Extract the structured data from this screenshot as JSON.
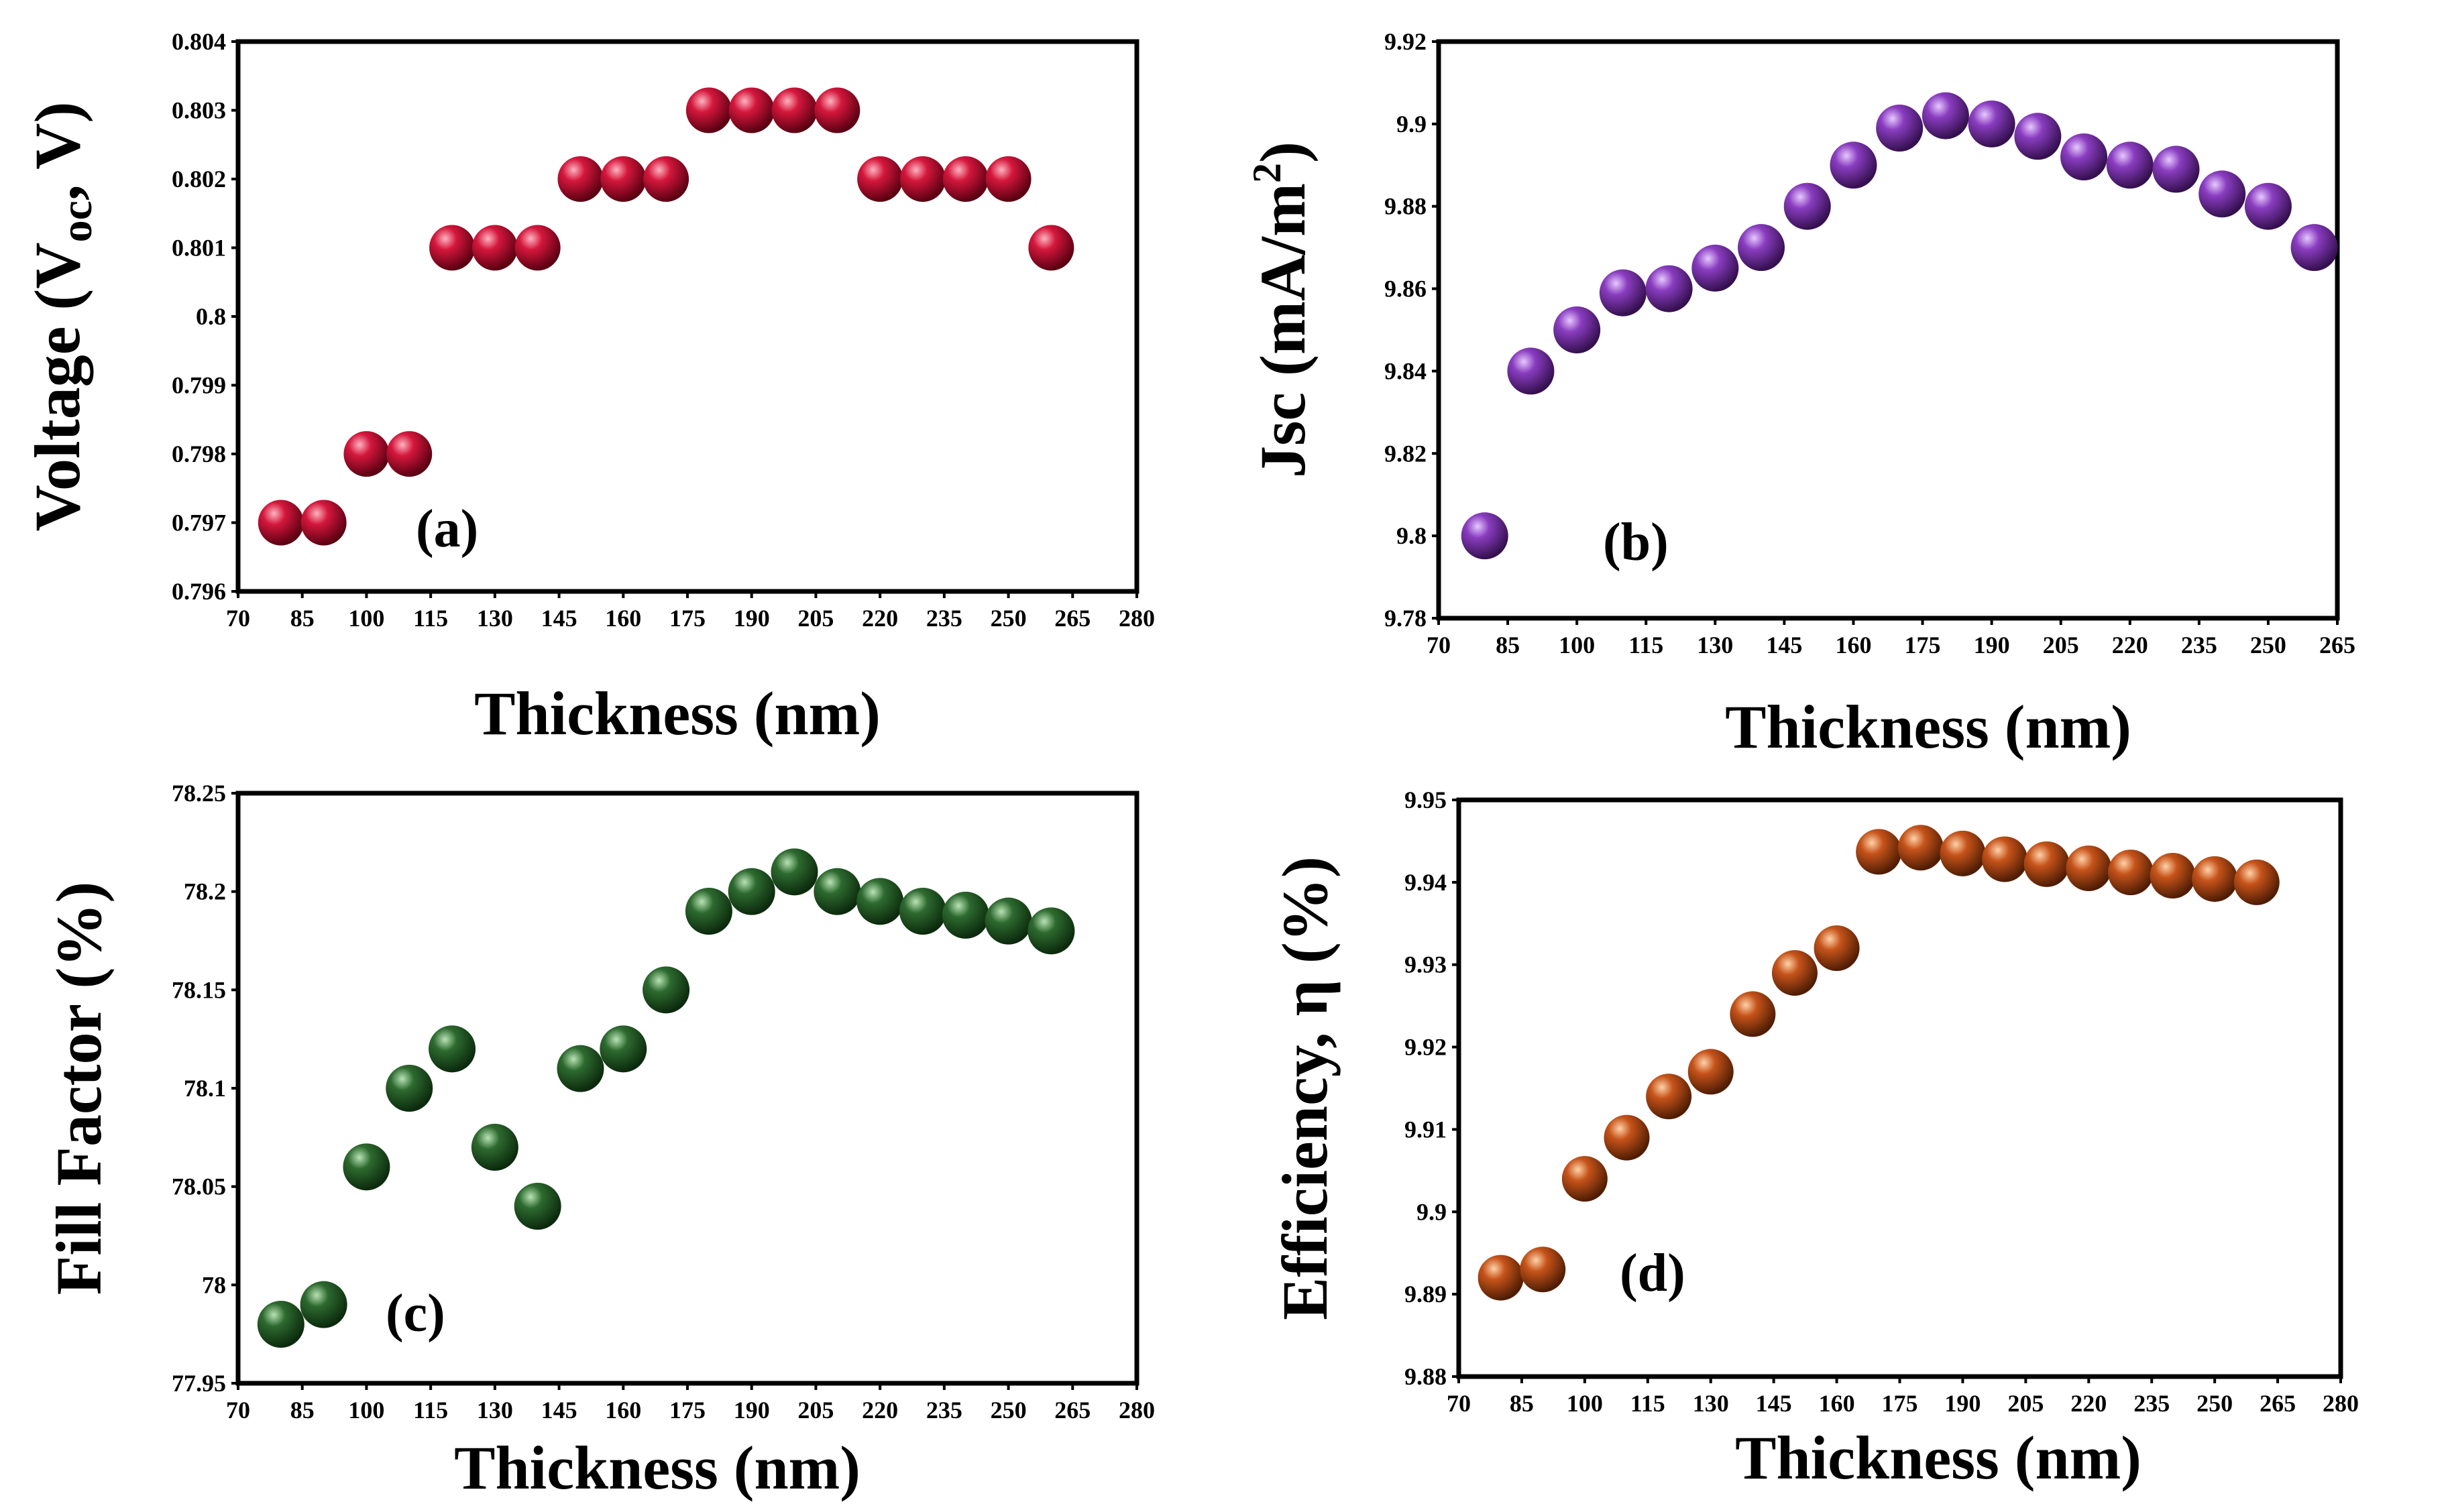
{
  "colors": {
    "a": "#d4173c",
    "b": "#8a3dc0",
    "c": "#2d6a2f",
    "d": "#c6531a"
  },
  "chart_data": [
    {
      "type": "scatter",
      "panel": "(a)",
      "title": "",
      "xlabel": "Thickness (nm)",
      "ylabel_main": "Voltage (V",
      "ylabel_sub": "oc",
      "ylabel_tail": ", V)",
      "xlim": [
        70,
        280
      ],
      "ylim": [
        0.796,
        0.804
      ],
      "xticks": [
        "70",
        "85",
        "100",
        "115",
        "130",
        "145",
        "160",
        "175",
        "190",
        "205",
        "220",
        "235",
        "250",
        "265",
        "280"
      ],
      "xtick_values": [
        70,
        85,
        100,
        115,
        130,
        145,
        160,
        175,
        190,
        205,
        220,
        235,
        250,
        265,
        280
      ],
      "yticks": [
        "0.796",
        "0.797",
        "0.798",
        "0.799",
        "0.8",
        "0.801",
        "0.802",
        "0.803",
        "0.804"
      ],
      "ytick_values": [
        0.796,
        0.797,
        0.798,
        0.799,
        0.8,
        0.801,
        0.802,
        0.803,
        0.804
      ],
      "x": [
        80,
        90,
        100,
        110,
        120,
        130,
        140,
        150,
        160,
        170,
        180,
        190,
        200,
        210,
        220,
        230,
        240,
        250,
        260
      ],
      "y": [
        0.797,
        0.797,
        0.798,
        0.798,
        0.801,
        0.801,
        0.801,
        0.802,
        0.802,
        0.802,
        0.803,
        0.803,
        0.803,
        0.803,
        0.802,
        0.802,
        0.802,
        0.802,
        0.801
      ]
    },
    {
      "type": "scatter",
      "panel": "(b)",
      "title": "",
      "xlabel": "Thickness (nm)",
      "ylabel_main": "Jsc (mA/m",
      "ylabel_sup": "2",
      "ylabel_tail": ")",
      "xlim": [
        70,
        265
      ],
      "ylim": [
        9.78,
        9.92
      ],
      "xticks": [
        "70",
        "85",
        "100",
        "115",
        "130",
        "145",
        "160",
        "175",
        "190",
        "205",
        "220",
        "235",
        "250",
        "265"
      ],
      "xtick_values": [
        70,
        85,
        100,
        115,
        130,
        145,
        160,
        175,
        190,
        205,
        220,
        235,
        250,
        265
      ],
      "yticks": [
        "9.78",
        "9.8",
        "9.82",
        "9.84",
        "9.86",
        "9.88",
        "9.9",
        "9.92"
      ],
      "ytick_values": [
        9.78,
        9.8,
        9.82,
        9.84,
        9.86,
        9.88,
        9.9,
        9.92
      ],
      "x": [
        80,
        90,
        100,
        110,
        120,
        130,
        140,
        150,
        160,
        170,
        180,
        190,
        200,
        210,
        220,
        230,
        240,
        250,
        260
      ],
      "y": [
        9.8,
        9.84,
        9.85,
        9.859,
        9.86,
        9.865,
        9.87,
        9.88,
        9.89,
        9.899,
        9.902,
        9.9,
        9.897,
        9.892,
        9.89,
        9.889,
        9.883,
        9.88,
        9.87
      ]
    },
    {
      "type": "scatter",
      "panel": "(c)",
      "title": "",
      "xlabel": "Thickness (nm)",
      "ylabel_main": "Fill Factor (%)",
      "xlim": [
        70,
        280
      ],
      "ylim": [
        77.95,
        78.25
      ],
      "xticks": [
        "70",
        "85",
        "100",
        "115",
        "130",
        "145",
        "160",
        "175",
        "190",
        "205",
        "220",
        "235",
        "250",
        "265",
        "280"
      ],
      "xtick_values": [
        70,
        85,
        100,
        115,
        130,
        145,
        160,
        175,
        190,
        205,
        220,
        235,
        250,
        265,
        280
      ],
      "yticks": [
        "77.95",
        "78",
        "78.05",
        "78.1",
        "78.15",
        "78.2",
        "78.25"
      ],
      "ytick_values": [
        77.95,
        78.0,
        78.05,
        78.1,
        78.15,
        78.2,
        78.25
      ],
      "x": [
        80,
        90,
        100,
        110,
        120,
        130,
        140,
        150,
        160,
        170,
        180,
        190,
        200,
        210,
        220,
        230,
        240,
        250,
        260
      ],
      "y": [
        77.98,
        77.99,
        78.06,
        78.1,
        78.12,
        78.07,
        78.04,
        78.11,
        78.12,
        78.15,
        78.19,
        78.2,
        78.21,
        78.2,
        78.195,
        78.19,
        78.188,
        78.185,
        78.18
      ]
    },
    {
      "type": "scatter",
      "panel": "(d)",
      "title": "",
      "xlabel": "Thickness (nm)",
      "ylabel_main": "Efficiency, η (%)",
      "xlim": [
        70,
        280
      ],
      "ylim": [
        9.88,
        9.95
      ],
      "xticks": [
        "70",
        "85",
        "100",
        "115",
        "130",
        "145",
        "160",
        "175",
        "190",
        "205",
        "220",
        "235",
        "250",
        "265",
        "280"
      ],
      "xtick_values": [
        70,
        85,
        100,
        115,
        130,
        145,
        160,
        175,
        190,
        205,
        220,
        235,
        250,
        265,
        280
      ],
      "yticks": [
        "9.88",
        "9.89",
        "9.9",
        "9.91",
        "9.92",
        "9.93",
        "9.94",
        "9.95"
      ],
      "ytick_values": [
        9.88,
        9.89,
        9.9,
        9.91,
        9.92,
        9.93,
        9.94,
        9.95
      ],
      "x": [
        80,
        90,
        100,
        110,
        120,
        130,
        140,
        150,
        160,
        170,
        180,
        190,
        200,
        210,
        220,
        230,
        240,
        250,
        260
      ],
      "y": [
        9.892,
        9.893,
        9.904,
        9.909,
        9.914,
        9.917,
        9.924,
        9.929,
        9.932,
        9.9437,
        9.9442,
        9.9435,
        9.9428,
        9.9422,
        9.9417,
        9.9412,
        9.9408,
        9.9404,
        9.94
      ]
    }
  ]
}
